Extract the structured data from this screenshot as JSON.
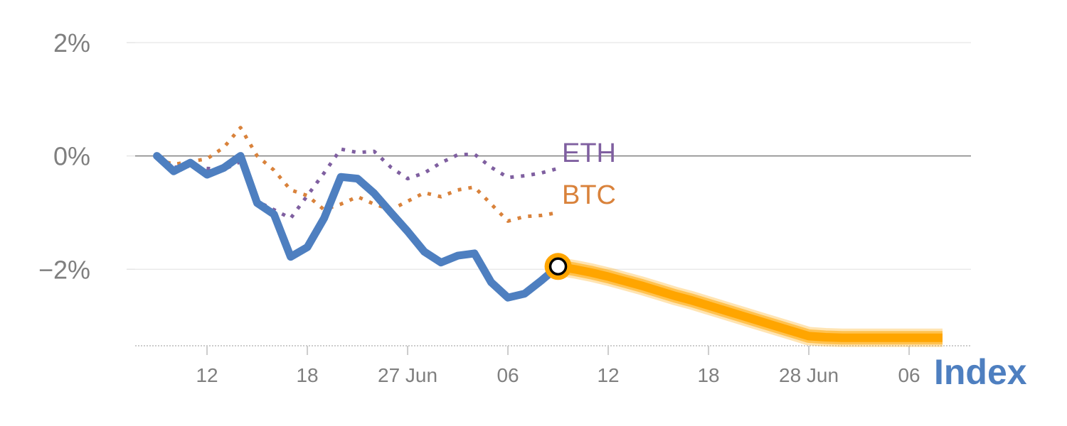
{
  "chart_data": {
    "type": "line",
    "title": "",
    "xlabel": "",
    "ylabel": "",
    "y_unit": "%",
    "ylim": [
      -3.35,
      2.0
    ],
    "y_ticks": [
      {
        "value": 2,
        "label": "2%"
      },
      {
        "value": 0,
        "label": "0%"
      },
      {
        "value": -2,
        "label": "−2%"
      }
    ],
    "zero_line": true,
    "grid": "horizontal",
    "x_ticks": [
      {
        "t": 3,
        "label": "12"
      },
      {
        "t": 9,
        "label": "18"
      },
      {
        "t": 15,
        "label": "27 Jun"
      },
      {
        "t": 21,
        "label": "06"
      },
      {
        "t": 27,
        "label": "12"
      },
      {
        "t": 33,
        "label": "18"
      },
      {
        "t": 39,
        "label": "28 Jun"
      },
      {
        "t": 45,
        "label": "06"
      }
    ],
    "x_range": [
      -1.3,
      48.7
    ],
    "series": [
      {
        "name": "Index",
        "role": "actual",
        "color": "#4e7fc0",
        "style": "solid",
        "x": [
          0,
          1,
          2,
          3,
          4,
          5,
          6,
          7,
          8,
          9,
          10,
          11,
          12,
          13,
          14,
          15,
          16,
          17,
          18,
          19,
          20,
          21,
          22,
          23,
          24
        ],
        "values": [
          0.0,
          -0.27,
          -0.12,
          -0.33,
          -0.21,
          0.0,
          -0.83,
          -1.03,
          -1.78,
          -1.61,
          -1.1,
          -0.37,
          -0.4,
          -0.66,
          -1.0,
          -1.33,
          -1.69,
          -1.88,
          -1.76,
          -1.72,
          -2.23,
          -2.5,
          -2.43,
          -2.2,
          -1.95
        ]
      },
      {
        "name": "Index forecast",
        "role": "forecast",
        "color": "#ffa500",
        "style": "band",
        "x": [
          24,
          25,
          26,
          27,
          28,
          29,
          30,
          31,
          32,
          33,
          34,
          35,
          36,
          37,
          38,
          39,
          40,
          41,
          42,
          43,
          44,
          45,
          46,
          47
        ],
        "values": [
          -1.95,
          -2.0,
          -2.06,
          -2.13,
          -2.21,
          -2.29,
          -2.38,
          -2.47,
          -2.55,
          -2.64,
          -2.73,
          -2.82,
          -2.91,
          -3.0,
          -3.09,
          -3.18,
          -3.2,
          -3.21,
          -3.21,
          -3.21,
          -3.21,
          -3.21,
          -3.21,
          -3.21
        ]
      },
      {
        "name": "ETH",
        "color": "#7f5fa0",
        "style": "dotted",
        "x": [
          0,
          1,
          2,
          3,
          4,
          5,
          6,
          7,
          8,
          9,
          10,
          11,
          12,
          13,
          14,
          15,
          16,
          17,
          18,
          19,
          20,
          21,
          22,
          23,
          24
        ],
        "values": [
          0.0,
          -0.2,
          -0.18,
          -0.22,
          -0.24,
          -0.1,
          -0.8,
          -0.95,
          -1.1,
          -0.7,
          -0.3,
          0.12,
          0.06,
          0.08,
          -0.2,
          -0.4,
          -0.3,
          -0.12,
          0.02,
          0.03,
          -0.2,
          -0.38,
          -0.35,
          -0.3,
          -0.22
        ]
      },
      {
        "name": "BTC",
        "color": "#d9823b",
        "style": "dotted",
        "x": [
          0,
          1,
          2,
          3,
          4,
          5,
          6,
          7,
          8,
          9,
          10,
          11,
          12,
          13,
          14,
          15,
          16,
          17,
          18,
          19,
          20,
          21,
          22,
          23,
          24
        ],
        "values": [
          -0.05,
          -0.15,
          -0.1,
          -0.05,
          0.15,
          0.5,
          0.0,
          -0.25,
          -0.6,
          -0.7,
          -0.95,
          -0.85,
          -0.72,
          -0.85,
          -0.95,
          -0.8,
          -0.65,
          -0.72,
          -0.6,
          -0.55,
          -0.85,
          -1.15,
          -1.07,
          -1.05,
          -1.0
        ]
      }
    ],
    "end_marker": {
      "x": 24,
      "y": -1.95
    },
    "labels": {
      "eth": "ETH",
      "btc": "BTC",
      "index": "Index"
    },
    "colors": {
      "grid": "#e6e6e6",
      "zero_line": "#808080",
      "axis": "#cccccc",
      "tick_text": "#7f7f7f",
      "marker_fill": "#ffffff",
      "marker_stroke": "#000000"
    }
  }
}
